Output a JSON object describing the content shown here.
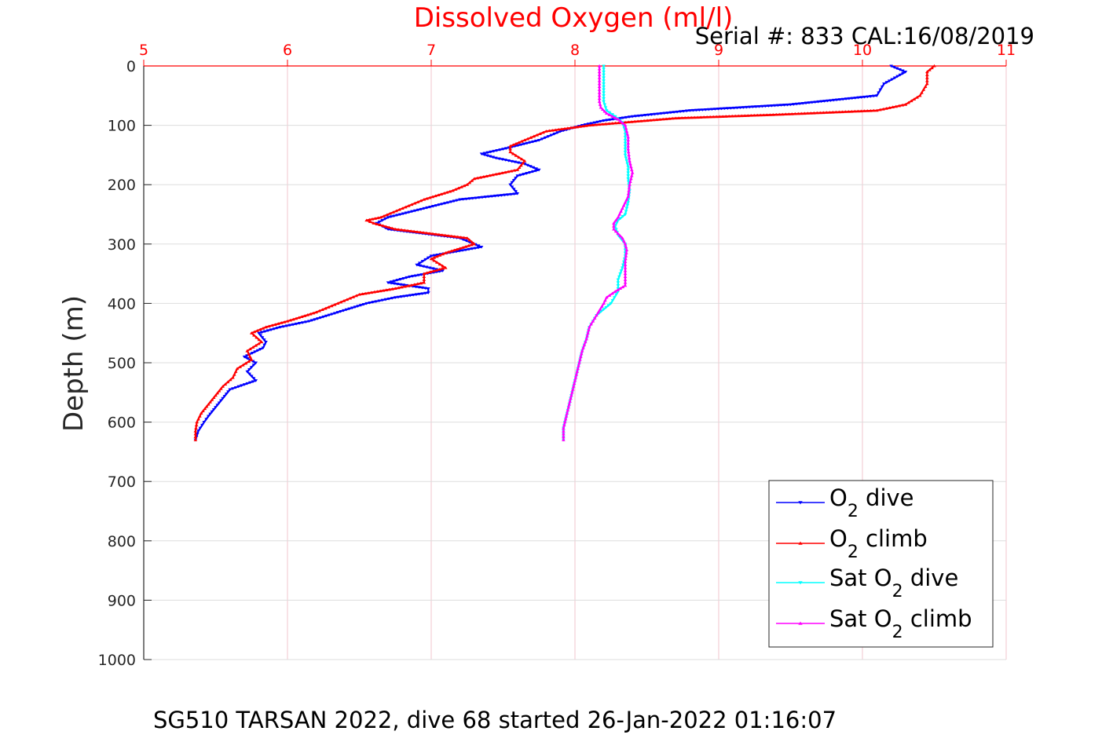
{
  "chart_data": {
    "type": "line",
    "title": "Dissolved Oxygen (ml/l)",
    "subtitle": "Serial #: 833  CAL:16/08/2019",
    "footer": "SG510 TARSAN 2022, dive 68 started 26-Jan-2022 01:16:07",
    "xlabel": "Dissolved Oxygen (ml/l)",
    "ylabel": "Depth (m)",
    "xlim": [
      5,
      11
    ],
    "ylim": [
      0,
      1000
    ],
    "y_reversed": true,
    "x_ticks": [
      "5",
      "6",
      "7",
      "8",
      "9",
      "10",
      "11"
    ],
    "y_ticks": [
      "0",
      "100",
      "200",
      "300",
      "400",
      "500",
      "600",
      "700",
      "800",
      "900",
      "1000"
    ],
    "grid": true,
    "legend_position": "bottom-right",
    "colors": {
      "o2_dive": "#0000ff",
      "o2_climb": "#ff0000",
      "sat_dive": "#00ffff",
      "sat_climb": "#ff00ff",
      "axis_x": "#ff0000",
      "grid": "#f2c4cc"
    },
    "series": [
      {
        "name": "O2 dive",
        "legend_main": "O",
        "legend_sub": "2",
        "legend_rest": " dive",
        "marker": "down-triangle",
        "color": "#0000ff",
        "depth": [
          0,
          10,
          30,
          50,
          65,
          75,
          85,
          92,
          100,
          110,
          125,
          140,
          148,
          155,
          165,
          175,
          185,
          200,
          215,
          225,
          240,
          255,
          265,
          275,
          290,
          305,
          320,
          335,
          345,
          355,
          365,
          375,
          382,
          390,
          400,
          415,
          430,
          440,
          450,
          465,
          475,
          490,
          500,
          515,
          530,
          545,
          560,
          575,
          590,
          600,
          615,
          630
        ],
        "values": [
          10.2,
          10.3,
          10.15,
          10.1,
          9.5,
          8.8,
          8.4,
          8.2,
          8.05,
          7.9,
          7.75,
          7.5,
          7.35,
          7.45,
          7.65,
          7.75,
          7.6,
          7.55,
          7.6,
          7.2,
          6.95,
          6.7,
          6.62,
          6.7,
          7.2,
          7.35,
          7.0,
          6.9,
          7.08,
          6.85,
          6.7,
          6.98,
          6.98,
          6.75,
          6.55,
          6.35,
          6.15,
          5.95,
          5.8,
          5.85,
          5.83,
          5.7,
          5.78,
          5.72,
          5.78,
          5.6,
          5.55,
          5.5,
          5.45,
          5.42,
          5.38,
          5.36
        ]
      },
      {
        "name": "O2 climb",
        "legend_main": "O",
        "legend_sub": "2",
        "legend_rest": " climb",
        "marker": "up-triangle",
        "color": "#ff0000",
        "depth": [
          0,
          10,
          30,
          50,
          65,
          75,
          82,
          88,
          95,
          100,
          110,
          125,
          135,
          145,
          160,
          175,
          190,
          200,
          210,
          225,
          240,
          255,
          260,
          265,
          275,
          290,
          300,
          315,
          325,
          340,
          350,
          365,
          375,
          385,
          400,
          415,
          430,
          440,
          450,
          465,
          480,
          495,
          510,
          525,
          540,
          555,
          570,
          585,
          600,
          615,
          630
        ],
        "values": [
          10.5,
          10.45,
          10.45,
          10.4,
          10.3,
          10.1,
          9.4,
          8.7,
          8.35,
          8.1,
          7.8,
          7.65,
          7.55,
          7.55,
          7.65,
          7.6,
          7.3,
          7.25,
          7.15,
          6.95,
          6.8,
          6.65,
          6.55,
          6.6,
          6.75,
          7.25,
          7.3,
          7.1,
          7.0,
          7.1,
          6.95,
          6.95,
          6.75,
          6.5,
          6.35,
          6.2,
          6.0,
          5.85,
          5.75,
          5.82,
          5.72,
          5.75,
          5.65,
          5.62,
          5.55,
          5.5,
          5.45,
          5.4,
          5.37,
          5.36,
          5.36
        ]
      },
      {
        "name": "Sat O2 dive",
        "legend_main": "Sat O",
        "legend_sub": "2",
        "legend_rest": " dive",
        "marker": "down-triangle",
        "color": "#00ffff",
        "depth": [
          0,
          20,
          40,
          60,
          75,
          85,
          95,
          110,
          130,
          150,
          170,
          190,
          210,
          230,
          250,
          260,
          270,
          285,
          300,
          320,
          340,
          360,
          380,
          400,
          420,
          440,
          460,
          480,
          500,
          530,
          560,
          590,
          610,
          630
        ],
        "values": [
          8.2,
          8.2,
          8.2,
          8.2,
          8.22,
          8.28,
          8.33,
          8.35,
          8.35,
          8.35,
          8.37,
          8.37,
          8.38,
          8.37,
          8.35,
          8.3,
          8.28,
          8.3,
          8.35,
          8.35,
          8.33,
          8.3,
          8.3,
          8.25,
          8.15,
          8.1,
          8.08,
          8.05,
          8.03,
          8.0,
          7.97,
          7.94,
          7.92,
          7.92
        ]
      },
      {
        "name": "Sat O2 climb",
        "legend_main": "Sat O",
        "legend_sub": "2",
        "legend_rest": " climb",
        "marker": "up-triangle",
        "color": "#ff00ff",
        "depth": [
          0,
          20,
          40,
          60,
          70,
          80,
          90,
          100,
          120,
          140,
          160,
          180,
          200,
          220,
          240,
          255,
          265,
          275,
          290,
          300,
          310,
          330,
          350,
          370,
          380,
          390,
          400,
          420,
          440,
          460,
          480,
          500,
          530,
          560,
          590,
          610,
          630
        ],
        "values": [
          8.17,
          8.17,
          8.17,
          8.17,
          8.18,
          8.22,
          8.3,
          8.35,
          8.37,
          8.37,
          8.38,
          8.4,
          8.38,
          8.37,
          8.33,
          8.3,
          8.27,
          8.27,
          8.33,
          8.35,
          8.36,
          8.35,
          8.35,
          8.35,
          8.28,
          8.22,
          8.2,
          8.15,
          8.1,
          8.08,
          8.05,
          8.03,
          8.0,
          7.97,
          7.94,
          7.92,
          7.92
        ]
      }
    ]
  }
}
